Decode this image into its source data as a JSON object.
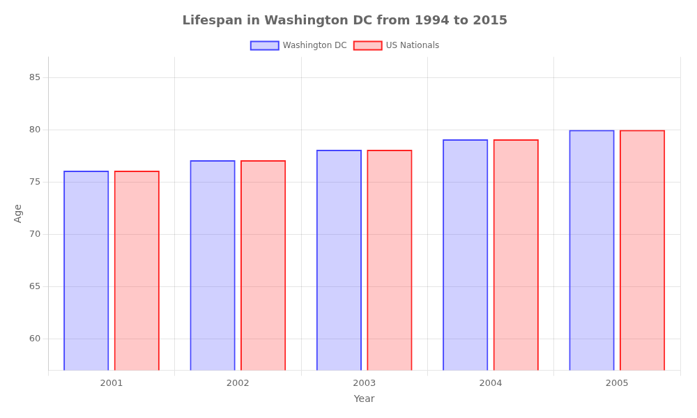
{
  "chart_data": {
    "type": "bar",
    "title": "Lifespan in Washington DC from 1994 to 2015",
    "xlabel": "Year",
    "ylabel": "Age",
    "categories": [
      "2001",
      "2002",
      "2003",
      "2004",
      "2005"
    ],
    "series": [
      {
        "name": "Washington DC",
        "color": "#4444ff",
        "values": [
          76.1,
          77.1,
          78.1,
          79.1,
          80.0
        ]
      },
      {
        "name": "US Nationals",
        "color": "#ff2222",
        "values": [
          76.1,
          77.1,
          78.1,
          79.1,
          80.0
        ]
      }
    ],
    "ylim": [
      57,
      87
    ],
    "yticks": [
      60,
      65,
      70,
      75,
      80,
      85
    ],
    "grid": true,
    "legend": "top"
  }
}
